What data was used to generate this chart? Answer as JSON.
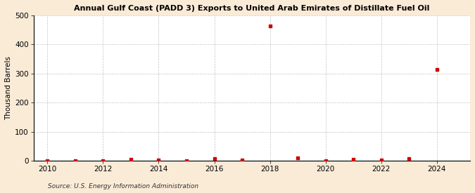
{
  "title": "Annual Gulf Coast (PADD 3) Exports to United Arab Emirates of Distillate Fuel Oil",
  "ylabel": "Thousand Barrels",
  "source": "Source: U.S. Energy Information Administration",
  "background_color": "#faebd7",
  "plot_background_color": "#ffffff",
  "marker_color": "#cc0000",
  "marker_size": 3.5,
  "xlim": [
    2009.5,
    2025.2
  ],
  "ylim": [
    0,
    500
  ],
  "yticks": [
    0,
    100,
    200,
    300,
    400,
    500
  ],
  "xticks": [
    2010,
    2012,
    2014,
    2016,
    2018,
    2020,
    2022,
    2024
  ],
  "grid_color": "#aaaaaa",
  "years": [
    2010,
    2011,
    2012,
    2013,
    2014,
    2015,
    2016,
    2017,
    2018,
    2019,
    2020,
    2021,
    2022,
    2023,
    2024
  ],
  "values": [
    0,
    0,
    1,
    4,
    2,
    1,
    7,
    2,
    463,
    10,
    1,
    5,
    2,
    7,
    313
  ]
}
